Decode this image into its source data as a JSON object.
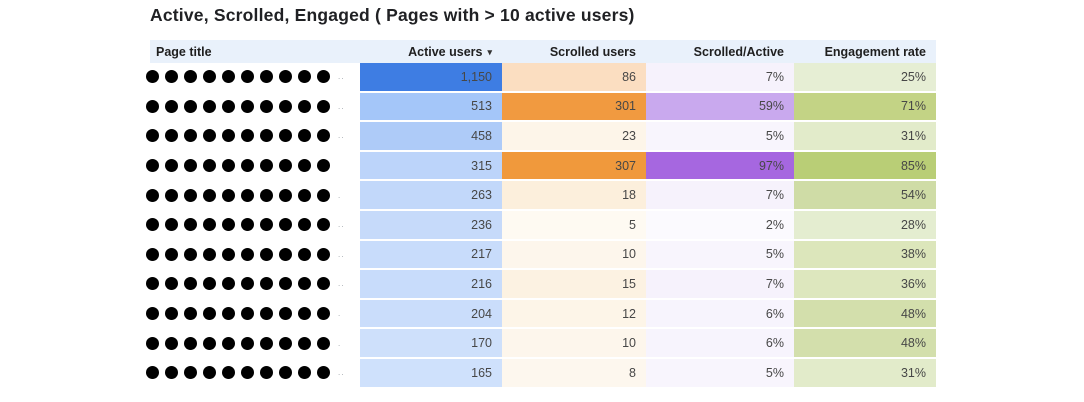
{
  "title": "Active, Scrolled, Engaged ( Pages with > 10 active users)",
  "colors": {
    "header_bg": "#e9f1fb",
    "header_text": "#1f1f1f",
    "cell_text": "#474747",
    "title_text": "#202124",
    "redaction_dot": "#000000",
    "page_title_cell_bg": "#ffffff"
  },
  "table": {
    "columns": [
      "Page title",
      "Active users",
      "Scrolled users",
      "Scrolled/Active",
      "Engagement rate"
    ],
    "sort_column": "Active users",
    "sort_icon": "▾",
    "rows": [
      {
        "dots": "●●●●●●●●●●",
        "suffix": "..",
        "active": "1,150",
        "active_bg": "#3e7de3",
        "scrolled": "86",
        "scrolled_bg": "#fbdec1",
        "ratio": "7%",
        "ratio_bg": "#f6f2fc",
        "engagement": "25%",
        "engagement_bg": "#e6eed4"
      },
      {
        "dots": "●●●●●●●●●●",
        "suffix": "..",
        "active": "513",
        "active_bg": "#a4c6f9",
        "scrolled": "301",
        "scrolled_bg": "#f19a40",
        "ratio": "59%",
        "ratio_bg": "#c9a9ee",
        "engagement": "71%",
        "engagement_bg": "#c3d385"
      },
      {
        "dots": "●●●●●●●●●●",
        "suffix": "..",
        "active": "458",
        "active_bg": "#aecbf8",
        "scrolled": "23",
        "scrolled_bg": "#fdf5e9",
        "ratio": "5%",
        "ratio_bg": "#f8f5fd",
        "engagement": "31%",
        "engagement_bg": "#e2ebca"
      },
      {
        "dots": "●●●●●●●●●●",
        "suffix": "",
        "active": "315",
        "active_bg": "#bcd4fa",
        "scrolled": "307",
        "scrolled_bg": "#f0993c",
        "ratio": "97%",
        "ratio_bg": "#a667e0",
        "engagement": "85%",
        "engagement_bg": "#b9ce76"
      },
      {
        "dots": "●●●●●●●●●●",
        "suffix": ".",
        "active": "263",
        "active_bg": "#c2d8fa",
        "scrolled": "18",
        "scrolled_bg": "#fcefdc",
        "ratio": "7%",
        "ratio_bg": "#f6f2fc",
        "engagement": "54%",
        "engagement_bg": "#cfdca6"
      },
      {
        "dots": "●●●●●●●●●●",
        "suffix": "..",
        "active": "236",
        "active_bg": "#c6dafa",
        "scrolled": "5",
        "scrolled_bg": "#fefaf2",
        "ratio": "2%",
        "ratio_bg": "#fbfafe",
        "engagement": "28%",
        "engagement_bg": "#e4edd0"
      },
      {
        "dots": "●●●●●●●●●●",
        "suffix": "..",
        "active": "217",
        "active_bg": "#c8dcfb",
        "scrolled": "10",
        "scrolled_bg": "#fdf6ec",
        "ratio": "5%",
        "ratio_bg": "#f8f5fd",
        "engagement": "38%",
        "engagement_bg": "#dce6bb"
      },
      {
        "dots": "●●●●●●●●●●",
        "suffix": "..",
        "active": "216",
        "active_bg": "#c8dcfb",
        "scrolled": "15",
        "scrolled_bg": "#fcf2e2",
        "ratio": "7%",
        "ratio_bg": "#f6f2fc",
        "engagement": "36%",
        "engagement_bg": "#dde7be"
      },
      {
        "dots": "●●●●●●●●●●",
        "suffix": ".",
        "active": "204",
        "active_bg": "#caddfb",
        "scrolled": "12",
        "scrolled_bg": "#fdf5e8",
        "ratio": "6%",
        "ratio_bg": "#f7f4fd",
        "engagement": "48%",
        "engagement_bg": "#d3dfac"
      },
      {
        "dots": "●●●●●●●●●●",
        "suffix": ".",
        "active": "170",
        "active_bg": "#cee0fb",
        "scrolled": "10",
        "scrolled_bg": "#fdf6ec",
        "ratio": "6%",
        "ratio_bg": "#f7f4fd",
        "engagement": "48%",
        "engagement_bg": "#d3dfac"
      },
      {
        "dots": "●●●●●●●●●●",
        "suffix": "..",
        "active": "165",
        "active_bg": "#cfe1fc",
        "scrolled": "8",
        "scrolled_bg": "#fdf7ee",
        "ratio": "5%",
        "ratio_bg": "#f8f5fd",
        "engagement": "31%",
        "engagement_bg": "#e2ebca"
      }
    ]
  }
}
